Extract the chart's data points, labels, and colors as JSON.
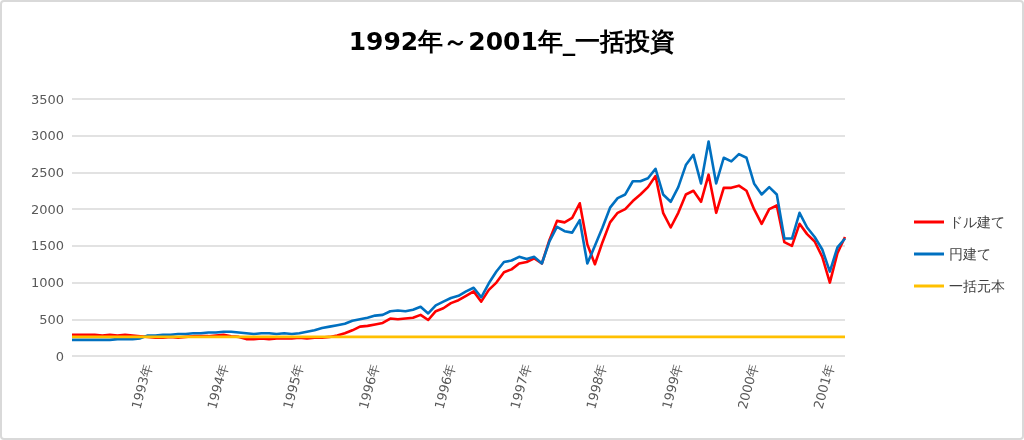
{
  "chart_data": {
    "type": "line",
    "title": "1992年～2001年_一括投資",
    "categories": [
      null,
      null,
      null,
      null,
      null,
      null,
      null,
      null,
      null,
      null,
      "1993年",
      null,
      null,
      null,
      null,
      null,
      null,
      null,
      null,
      null,
      "1994年",
      null,
      null,
      null,
      null,
      null,
      null,
      null,
      null,
      null,
      "1995年",
      null,
      null,
      null,
      null,
      null,
      null,
      null,
      null,
      null,
      "1996年",
      null,
      null,
      null,
      null,
      null,
      null,
      null,
      null,
      null,
      "1996年",
      null,
      null,
      null,
      null,
      null,
      null,
      null,
      null,
      null,
      "1997年",
      null,
      null,
      null,
      null,
      null,
      null,
      null,
      null,
      null,
      "1998年",
      null,
      null,
      null,
      null,
      null,
      null,
      null,
      null,
      null,
      "1999年",
      null,
      null,
      null,
      null,
      null,
      null,
      null,
      null,
      null,
      "2000年",
      null,
      null,
      null,
      null,
      null,
      null,
      null,
      null,
      null,
      "2001年",
      null,
      null
    ],
    "series": [
      {
        "name": "ドル建て",
        "color": "#ff0000",
        "values": [
          290,
          290,
          290,
          290,
          280,
          290,
          280,
          290,
          280,
          270,
          260,
          250,
          250,
          260,
          250,
          260,
          270,
          270,
          270,
          280,
          290,
          270,
          260,
          230,
          230,
          240,
          230,
          240,
          240,
          240,
          250,
          240,
          250,
          250,
          260,
          280,
          310,
          350,
          400,
          410,
          430,
          450,
          510,
          500,
          510,
          520,
          560,
          490,
          610,
          650,
          720,
          760,
          820,
          880,
          740,
          900,
          1000,
          1140,
          1180,
          1260,
          1280,
          1330,
          1260,
          1580,
          1840,
          1820,
          1880,
          2080,
          1520,
          1250,
          1550,
          1820,
          1950,
          2000,
          2110,
          2200,
          2300,
          2450,
          1950,
          1750,
          1950,
          2200,
          2250,
          2100,
          2470,
          1950,
          2290,
          2290,
          2320,
          2250,
          2000,
          1800,
          2000,
          2050,
          1550,
          1500,
          1800,
          1660,
          1560,
          1350,
          1000,
          1400,
          1620
        ]
      },
      {
        "name": "円建て",
        "color": "#0070c0",
        "values": [
          220,
          220,
          220,
          220,
          220,
          220,
          230,
          230,
          230,
          240,
          280,
          280,
          290,
          290,
          300,
          300,
          310,
          310,
          320,
          320,
          330,
          330,
          320,
          310,
          300,
          310,
          310,
          300,
          310,
          300,
          310,
          330,
          350,
          380,
          400,
          420,
          440,
          480,
          500,
          520,
          550,
          560,
          610,
          620,
          610,
          630,
          670,
          580,
          690,
          740,
          790,
          820,
          880,
          930,
          800,
          990,
          1150,
          1280,
          1300,
          1350,
          1320,
          1350,
          1260,
          1560,
          1760,
          1700,
          1680,
          1850,
          1260,
          1500,
          1750,
          2020,
          2150,
          2200,
          2380,
          2380,
          2420,
          2550,
          2200,
          2100,
          2300,
          2600,
          2740,
          2350,
          2920,
          2350,
          2700,
          2650,
          2750,
          2700,
          2350,
          2200,
          2300,
          2200,
          1600,
          1600,
          1950,
          1750,
          1620,
          1450,
          1150,
          1480,
          1600
        ]
      },
      {
        "name": "一括元本",
        "color": "#ffc000",
        "values": [
          260,
          260,
          260,
          260,
          260,
          260,
          260,
          260,
          260,
          260,
          260,
          260,
          260,
          260,
          260,
          260,
          260,
          260,
          260,
          260,
          260,
          260,
          260,
          260,
          260,
          260,
          260,
          260,
          260,
          260,
          260,
          260,
          260,
          260,
          260,
          260,
          260,
          260,
          260,
          260,
          260,
          260,
          260,
          260,
          260,
          260,
          260,
          260,
          260,
          260,
          260,
          260,
          260,
          260,
          260,
          260,
          260,
          260,
          260,
          260,
          260,
          260,
          260,
          260,
          260,
          260,
          260,
          260,
          260,
          260,
          260,
          260,
          260,
          260,
          260,
          260,
          260,
          260,
          260,
          260,
          260,
          260,
          260,
          260,
          260,
          260,
          260,
          260,
          260,
          260,
          260,
          260,
          260,
          260,
          260,
          260,
          260,
          260,
          260,
          260,
          260,
          260,
          260
        ]
      }
    ],
    "ylim": [
      0,
      3500
    ],
    "yticks": [
      0,
      500,
      1000,
      1500,
      2000,
      2500,
      3000,
      3500
    ],
    "grid": "y",
    "legend": "right",
    "marker": "none"
  }
}
